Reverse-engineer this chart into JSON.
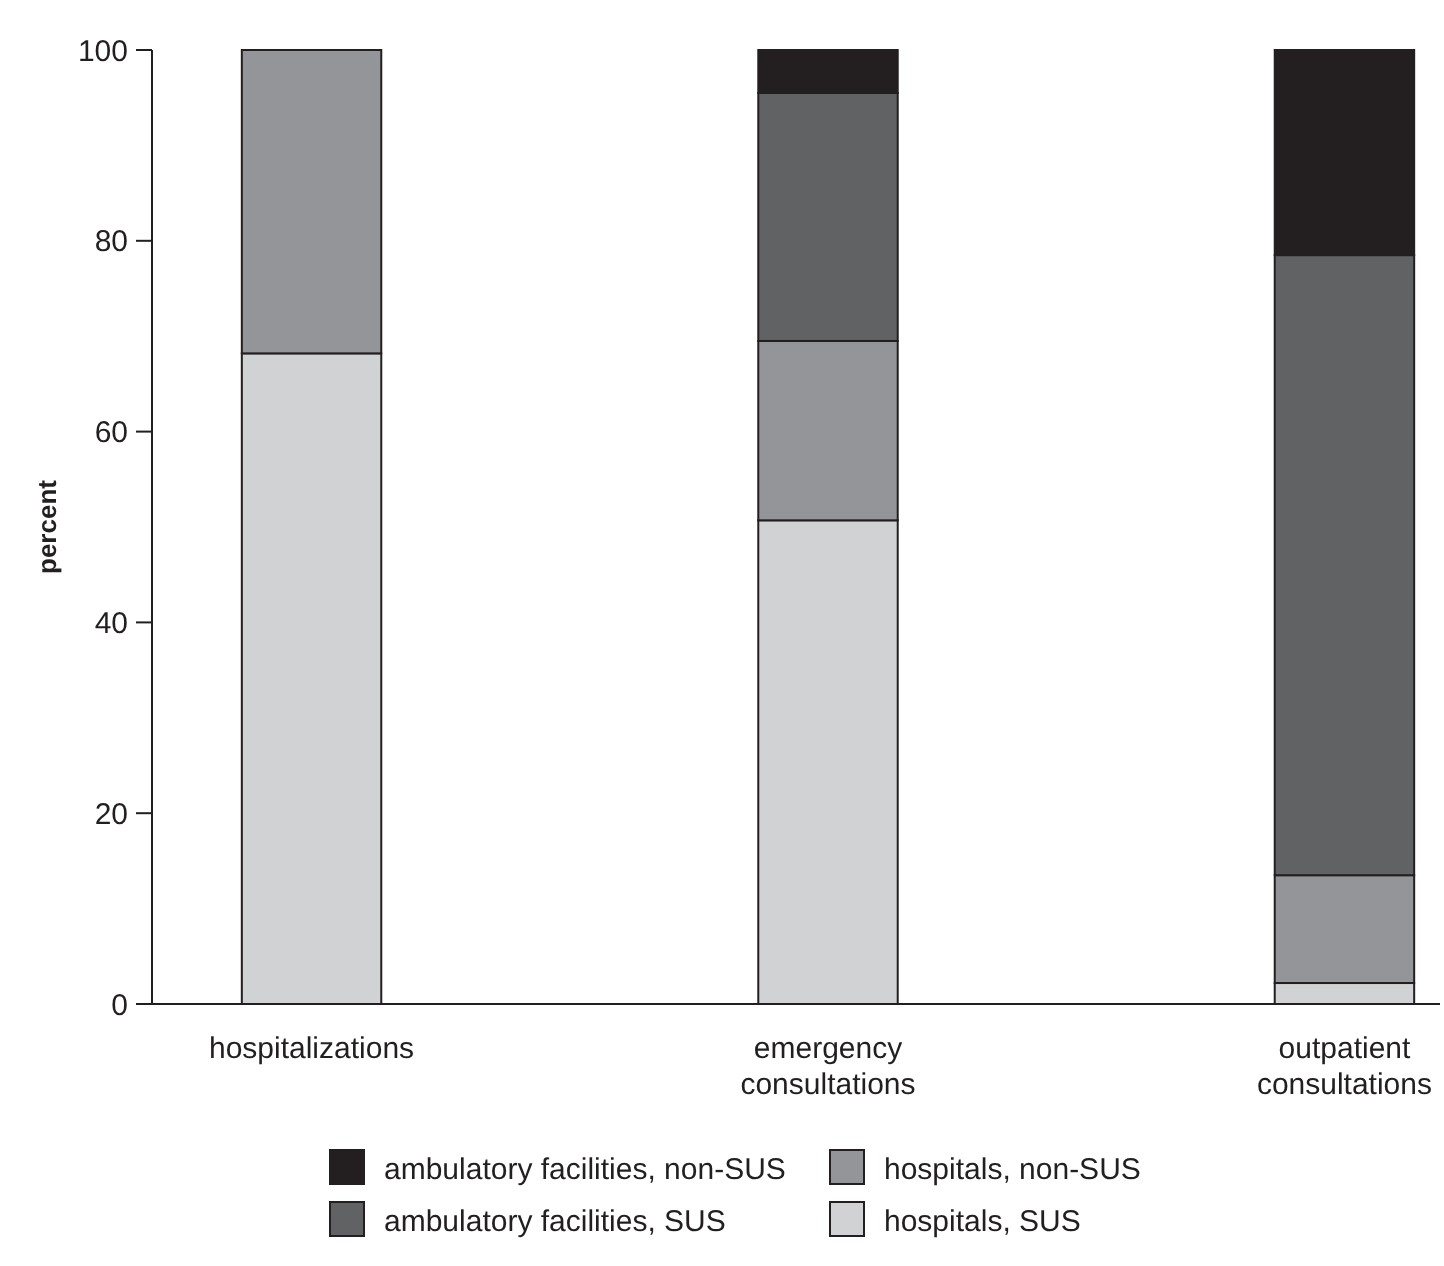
{
  "chart_data": {
    "type": "bar",
    "stacked": true,
    "ylabel": "percent",
    "categories": [
      "hospitalizations",
      "emergency\nconsultations",
      "outpatient\nconsultations"
    ],
    "ylim": [
      0,
      100
    ],
    "yticks": [
      0,
      20,
      40,
      60,
      80,
      100
    ],
    "legend": "bottom",
    "series": [
      {
        "name": "hospitals, SUS",
        "color": "#d1d2d4",
        "values": [
          68.2,
          50.7,
          2.2
        ]
      },
      {
        "name": "hospitals, non-SUS",
        "color": "#939598",
        "values": [
          31.8,
          18.8,
          11.3
        ]
      },
      {
        "name": "ambulatory facilities, SUS",
        "color": "#616264",
        "values": [
          0,
          26.0,
          65.0
        ]
      },
      {
        "name": "ambulatory facilities, non-SUS",
        "color": "#231f20",
        "values": [
          0,
          4.5,
          21.5
        ]
      }
    ]
  }
}
